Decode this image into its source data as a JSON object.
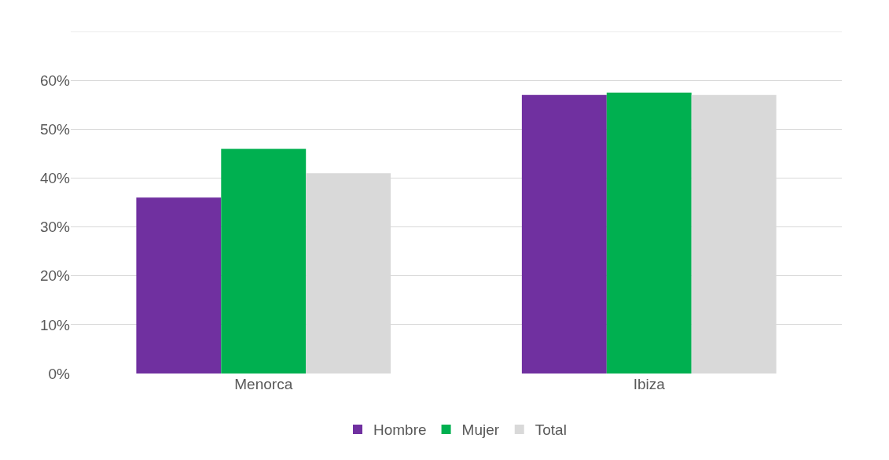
{
  "chart_data": {
    "type": "bar",
    "categories": [
      "Menorca",
      "Ibiza"
    ],
    "series": [
      {
        "name": "Hombre",
        "color": "#7030a0",
        "values": [
          36,
          57
        ]
      },
      {
        "name": "Mujer",
        "color": "#00b050",
        "values": [
          46,
          57.5
        ]
      },
      {
        "name": "Total",
        "color": "#d9d9d9",
        "values": [
          41,
          57
        ]
      }
    ],
    "ylim": [
      0,
      70
    ],
    "yticks": [
      {
        "value": 0,
        "label": "0%"
      },
      {
        "value": 10,
        "label": "10%"
      },
      {
        "value": 20,
        "label": "20%"
      },
      {
        "value": 30,
        "label": "30%"
      },
      {
        "value": 40,
        "label": "40%"
      },
      {
        "value": 50,
        "label": "50%"
      },
      {
        "value": 60,
        "label": "60%"
      },
      {
        "value": 70,
        "label": null
      }
    ],
    "grid": "y",
    "legend": "bottom"
  }
}
